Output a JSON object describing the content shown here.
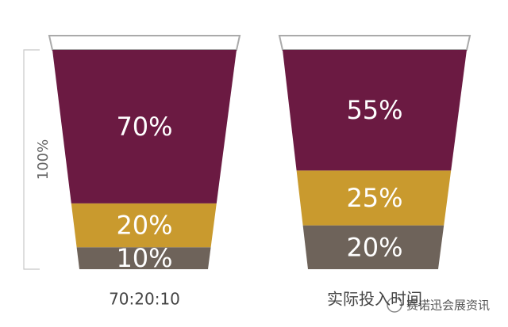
{
  "chart_data": {
    "type": "cup",
    "categories": [
      "70:20:10",
      "实际投入时间"
    ],
    "series": [
      {
        "color": "#6b1a42",
        "values": [
          70,
          55
        ],
        "value_labels": [
          "70%",
          "55%"
        ]
      },
      {
        "color": "#c99a2e",
        "values": [
          20,
          25
        ],
        "value_labels": [
          "20%",
          "25%"
        ]
      },
      {
        "color": "#6e635a",
        "values": [
          10,
          20
        ],
        "value_labels": [
          "10%",
          "20%"
        ]
      }
    ],
    "ylim": [
      0,
      100
    ],
    "total_label": "100%"
  },
  "watermark": "赛诺迅会展资讯"
}
